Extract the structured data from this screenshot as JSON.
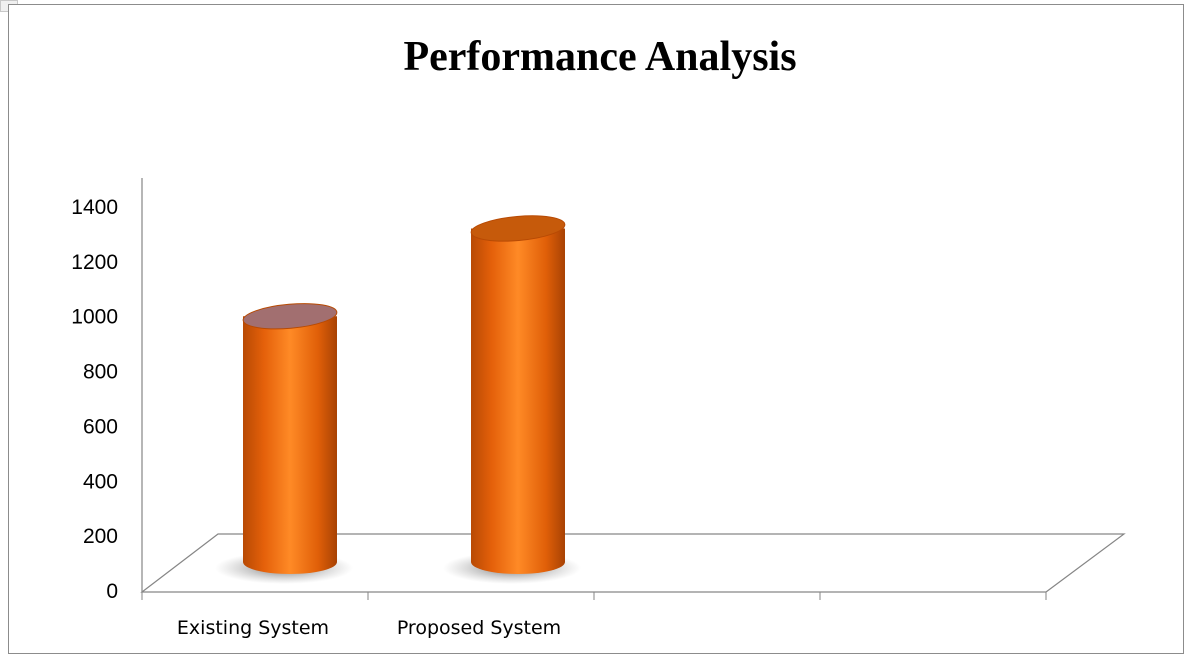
{
  "chart_data": {
    "type": "bar",
    "title": "Performance Analysis",
    "categories": [
      "Existing System",
      "Proposed System"
    ],
    "series": [
      {
        "values": [
          1060,
          1380
        ]
      }
    ],
    "ylim": [
      0,
      1400
    ],
    "yticks": [
      0,
      200,
      400,
      600,
      800,
      1000,
      1200,
      1400
    ],
    "legend": "none",
    "grid": false,
    "style": "3d-cylinder",
    "colors": {
      "bar": "#ef6f0c",
      "bar_dark": "#b84a04",
      "bar_light": "#ff9a3c",
      "top_existing": "#a26f70",
      "top_proposed": "#c65a0b"
    }
  }
}
